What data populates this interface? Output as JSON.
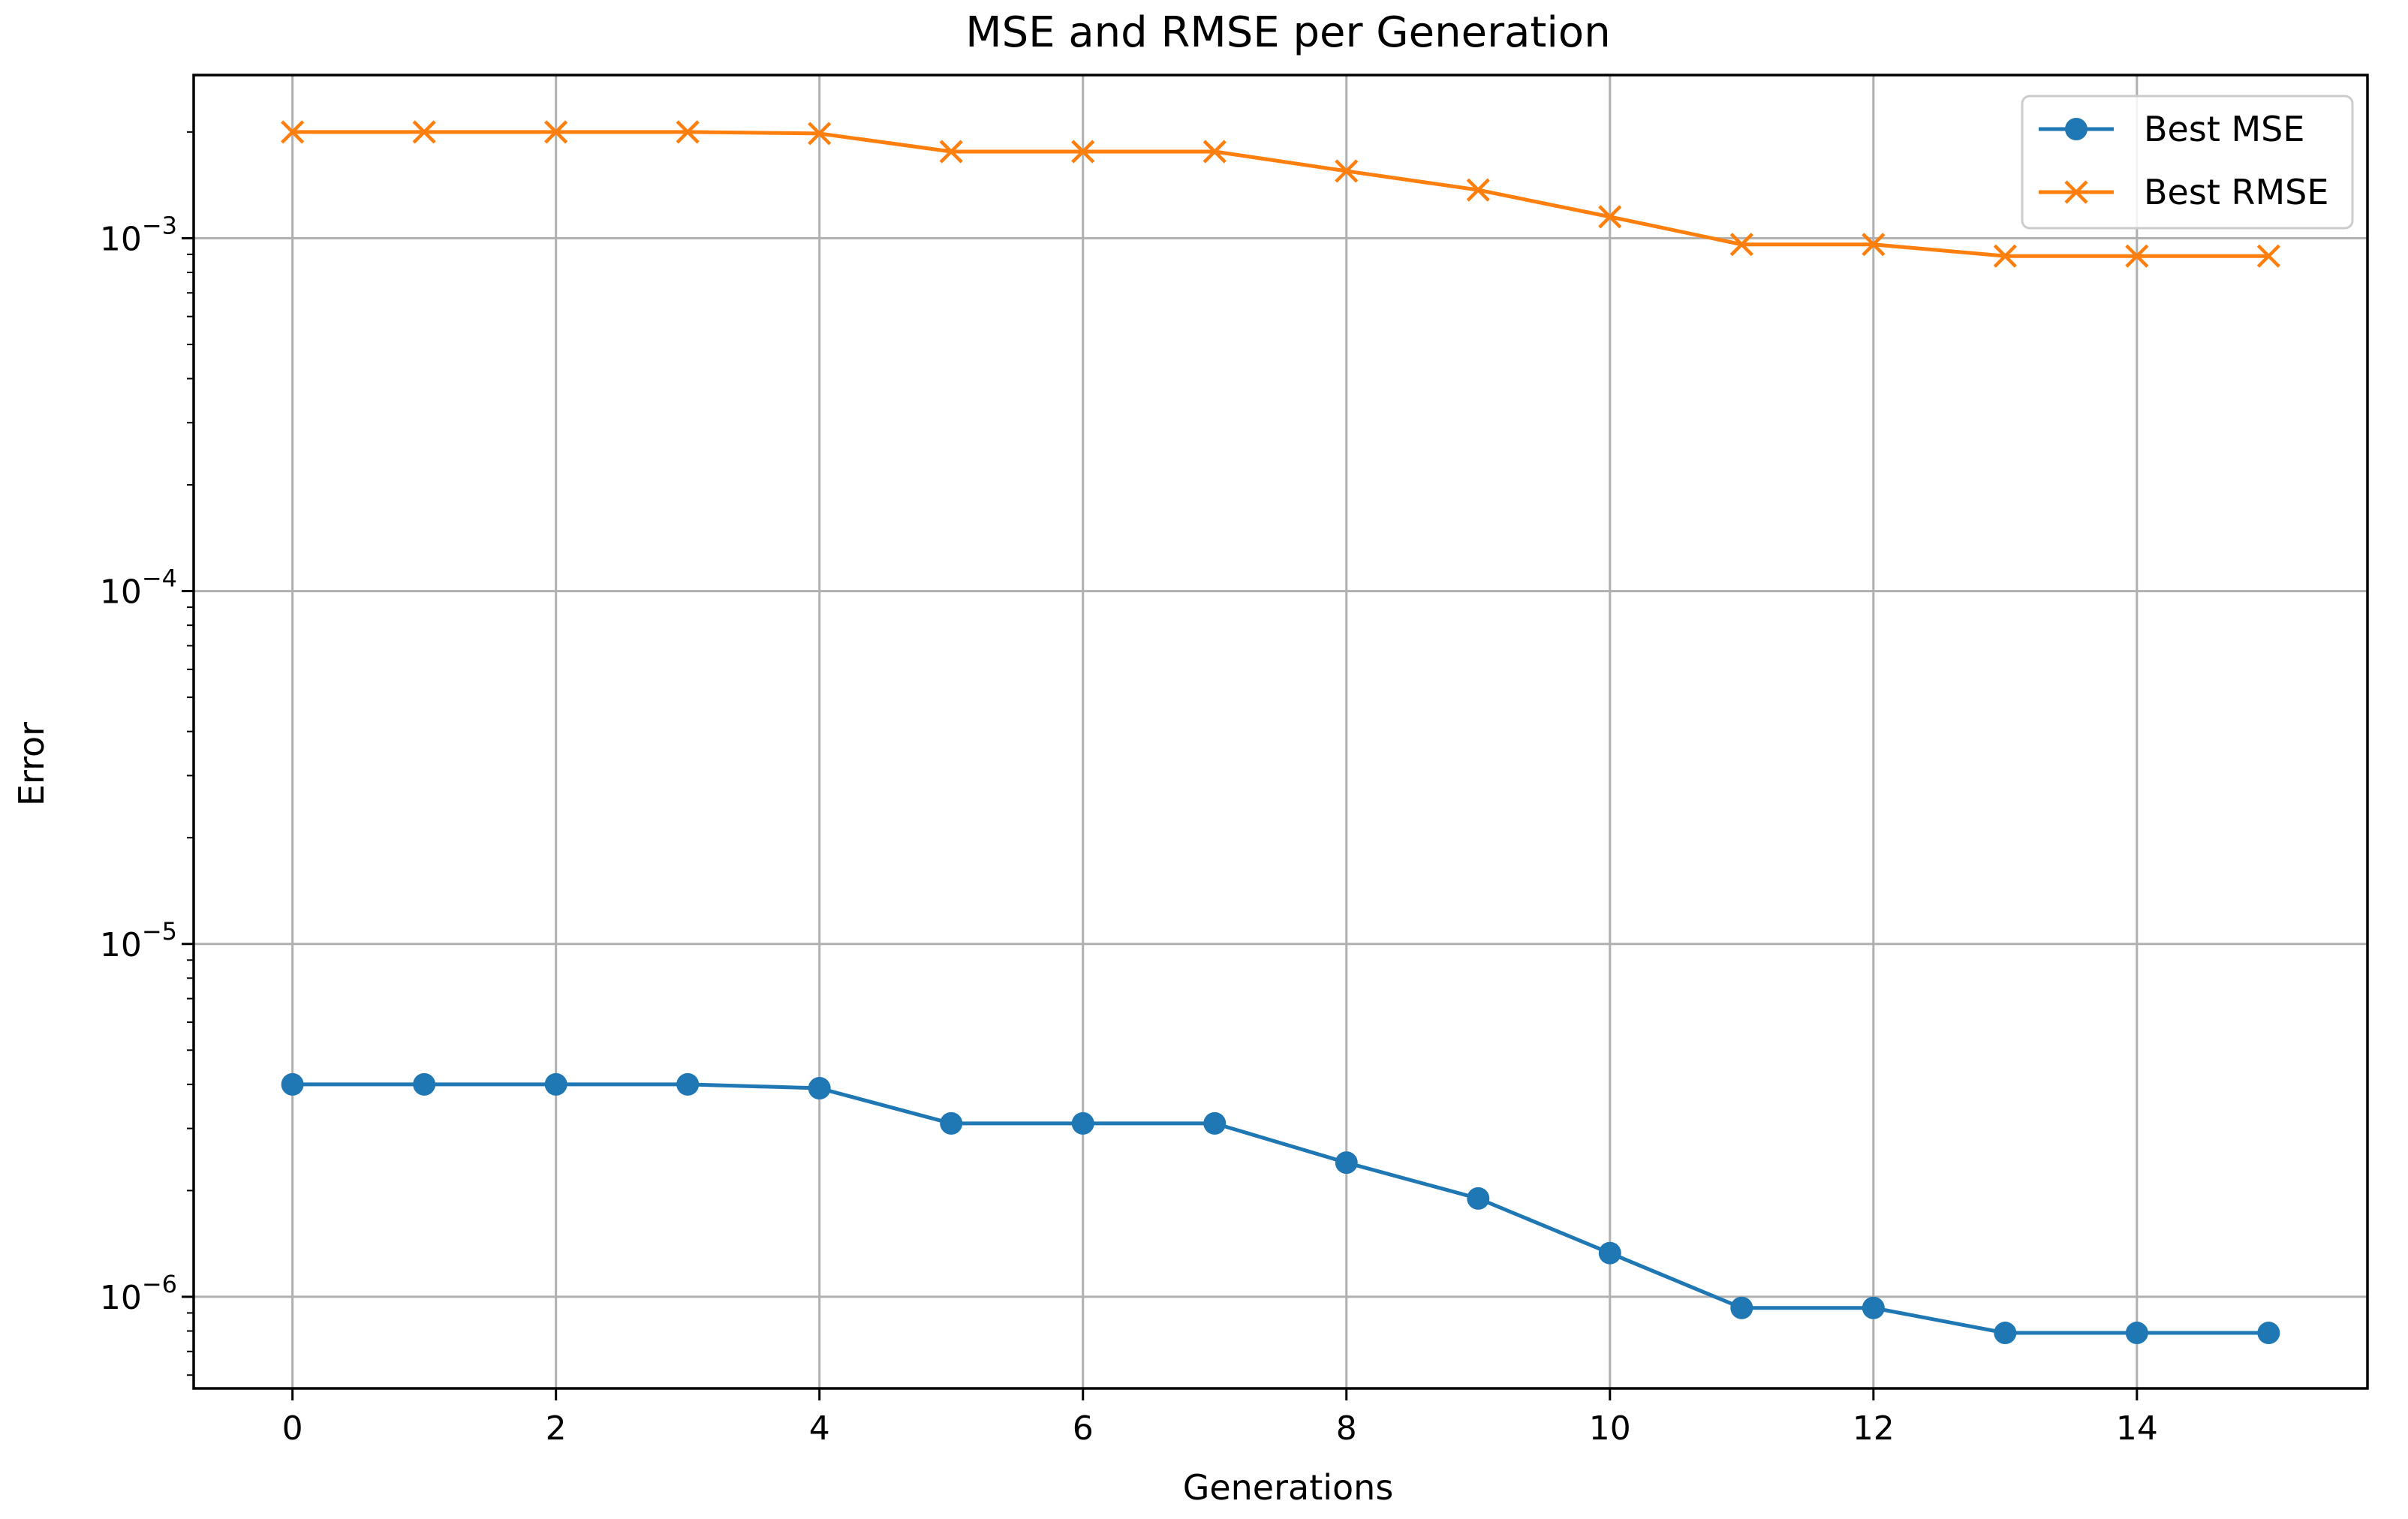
{
  "chart_data": {
    "type": "line",
    "title": "MSE and RMSE per Generation",
    "xlabel": "Generations",
    "ylabel": "Error",
    "yscale": "log",
    "xlim": [
      -0.75,
      15.75
    ],
    "ylim": [
      5.5e-07,
      0.0029
    ],
    "grid": true,
    "legend_position": "top-right",
    "x": [
      0,
      1,
      2,
      3,
      4,
      5,
      6,
      7,
      8,
      9,
      10,
      11,
      12,
      13,
      14,
      15
    ],
    "x_ticks": [
      0,
      2,
      4,
      6,
      8,
      10,
      12,
      14
    ],
    "x_tick_labels": [
      "0",
      "2",
      "4",
      "6",
      "8",
      "10",
      "12",
      "14"
    ],
    "y_ticks": [
      {
        "value": 1e-06,
        "base": "10",
        "exponent": "−6"
      },
      {
        "value": 1e-05,
        "base": "10",
        "exponent": "−5"
      },
      {
        "value": 0.0001,
        "base": "10",
        "exponent": "−4"
      },
      {
        "value": 0.001,
        "base": "10",
        "exponent": "−3"
      }
    ],
    "series": [
      {
        "name": "Best MSE",
        "color": "#1f77b4",
        "marker": "circle",
        "values": [
          4e-06,
          4e-06,
          4e-06,
          4e-06,
          3.9e-06,
          3.1e-06,
          3.1e-06,
          3.1e-06,
          2.4e-06,
          1.9e-06,
          1.33e-06,
          9.3e-07,
          9.3e-07,
          7.9e-07,
          7.9e-07,
          7.9e-07
        ]
      },
      {
        "name": "Best RMSE",
        "color": "#ff7f0e",
        "marker": "x",
        "values": [
          0.002,
          0.002,
          0.002,
          0.002,
          0.00198,
          0.00176,
          0.00176,
          0.00176,
          0.00155,
          0.00137,
          0.00115,
          0.00096,
          0.00096,
          0.00089,
          0.00089,
          0.00089
        ]
      }
    ]
  }
}
